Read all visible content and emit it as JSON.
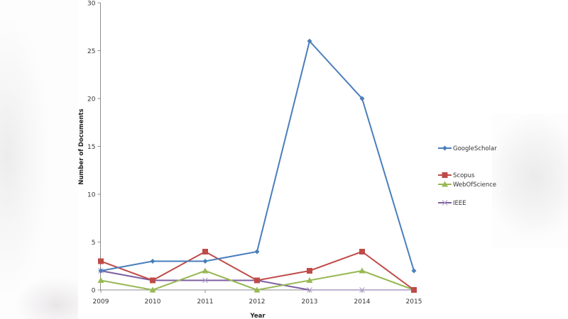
{
  "chart_data": {
    "type": "line",
    "title": "",
    "xlabel": "Year",
    "ylabel": "Number of Documents",
    "categories": [
      "2009",
      "2010",
      "2011",
      "2012",
      "2013",
      "2014",
      "2015"
    ],
    "ylim": [
      0,
      30
    ],
    "yticks": [
      0,
      5,
      10,
      15,
      20,
      25,
      30
    ],
    "grid": false,
    "legend_position": "right",
    "series": [
      {
        "name": "GoogleScholar",
        "color": "#4a7ebb",
        "marker": "diamond",
        "values": [
          2,
          3,
          3,
          4,
          26,
          20,
          2
        ]
      },
      {
        "name": "Scopus",
        "color": "#be4b48",
        "marker": "square",
        "values": [
          3,
          1,
          4,
          1,
          2,
          4,
          0
        ]
      },
      {
        "name": "WebOfScience",
        "color": "#98b954",
        "marker": "triangle",
        "values": [
          1,
          0,
          2,
          0,
          1,
          2,
          0
        ]
      },
      {
        "name": "IEEE",
        "color": "#7d5fa0",
        "marker": "x",
        "values": [
          2,
          1,
          1,
          1,
          0,
          0,
          0
        ]
      }
    ]
  },
  "axes": {
    "x_title": "Year",
    "y_title": "Number of Documents"
  },
  "legend": {
    "items": [
      "GoogleScholar",
      "Scopus",
      "WebOfScience",
      "IEEE"
    ]
  }
}
